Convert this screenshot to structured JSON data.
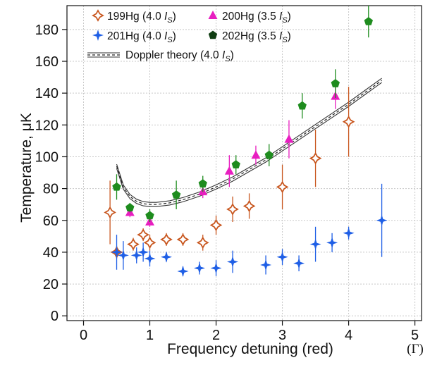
{
  "chart_data": {
    "type": "scatter",
    "xlabel": "Frequency detuning (red)",
    "x_unit": "(Γ)",
    "ylabel": "Temperature, μK",
    "xlim": [
      -0.25,
      5.1
    ],
    "ylim": [
      -3,
      195
    ],
    "x_ticks": [
      "0",
      "1",
      "2",
      "3",
      "4",
      "5"
    ],
    "y_ticks": [
      "0",
      "20",
      "40",
      "60",
      "80",
      "100",
      "120",
      "140",
      "160",
      "180"
    ],
    "grid": true,
    "legend_position": "top-left",
    "series": [
      {
        "name": "199Hg (4.0 I_S)",
        "legend_main": "199Hg (4.0 ",
        "legend_var": "I",
        "legend_sub": "S",
        "legend_close": ")",
        "marker": "open-star",
        "color": "#c8561e",
        "points": [
          {
            "x": 0.4,
            "y": 65,
            "err": 20
          },
          {
            "x": 0.5,
            "y": 40,
            "err": 4
          },
          {
            "x": 0.75,
            "y": 45,
            "err": 4
          },
          {
            "x": 0.9,
            "y": 51,
            "err": 4
          },
          {
            "x": 1.0,
            "y": 46,
            "err": 5
          },
          {
            "x": 1.25,
            "y": 48,
            "err": 4
          },
          {
            "x": 1.5,
            "y": 48,
            "err": 4
          },
          {
            "x": 1.8,
            "y": 46,
            "err": 5
          },
          {
            "x": 2.0,
            "y": 57,
            "err": 6
          },
          {
            "x": 2.25,
            "y": 67,
            "err": 8
          },
          {
            "x": 2.5,
            "y": 69,
            "err": 8
          },
          {
            "x": 3.0,
            "y": 81,
            "err": 14
          },
          {
            "x": 3.5,
            "y": 99,
            "err": 18
          },
          {
            "x": 4.0,
            "y": 122,
            "err": 22
          }
        ]
      },
      {
        "name": "200Hg (3.5 I_S)",
        "legend_main": "200Hg (3.5 ",
        "legend_var": "I",
        "legend_sub": "S",
        "legend_close": ")",
        "marker": "triangle",
        "color": "#e81ec0",
        "points": [
          {
            "x": 0.7,
            "y": 65,
            "err": 3
          },
          {
            "x": 1.0,
            "y": 59,
            "err": 3
          },
          {
            "x": 1.8,
            "y": 78,
            "err": 4
          },
          {
            "x": 2.2,
            "y": 91,
            "err": 10
          },
          {
            "x": 2.6,
            "y": 101,
            "err": 6
          },
          {
            "x": 3.1,
            "y": 111,
            "err": 12
          },
          {
            "x": 3.8,
            "y": 138,
            "err": 8
          }
        ]
      },
      {
        "name": "201Hg (4.0 I_S)",
        "legend_main": "201Hg (4.0 ",
        "legend_var": "I",
        "legend_sub": "S",
        "legend_close": ")",
        "marker": "diamond-star",
        "color": "#1f5fe6",
        "points": [
          {
            "x": 0.5,
            "y": 40,
            "err": 11
          },
          {
            "x": 0.6,
            "y": 38,
            "err": 9
          },
          {
            "x": 0.8,
            "y": 38,
            "err": 5
          },
          {
            "x": 0.9,
            "y": 40,
            "err": 6
          },
          {
            "x": 1.0,
            "y": 36,
            "err": 5
          },
          {
            "x": 1.25,
            "y": 37,
            "err": 3
          },
          {
            "x": 1.5,
            "y": 28,
            "err": 3
          },
          {
            "x": 1.75,
            "y": 30,
            "err": 4
          },
          {
            "x": 2.0,
            "y": 30,
            "err": 5
          },
          {
            "x": 2.25,
            "y": 34,
            "err": 7
          },
          {
            "x": 2.75,
            "y": 32,
            "err": 6
          },
          {
            "x": 3.0,
            "y": 37,
            "err": 5
          },
          {
            "x": 3.25,
            "y": 33,
            "err": 5
          },
          {
            "x": 3.5,
            "y": 45,
            "err": 11
          },
          {
            "x": 3.75,
            "y": 46,
            "err": 6
          },
          {
            "x": 4.0,
            "y": 52,
            "err": 4
          },
          {
            "x": 4.5,
            "y": 60,
            "err": 23
          }
        ]
      },
      {
        "name": "202Hg (3.5 I_S)",
        "legend_main": "202Hg (3.5 ",
        "legend_var": "I",
        "legend_sub": "S",
        "legend_close": ")",
        "marker": "pentagon",
        "color": "#1e8c1e",
        "legend_color": "#0f3d12",
        "points": [
          {
            "x": 0.5,
            "y": 81,
            "err": 8
          },
          {
            "x": 0.7,
            "y": 68,
            "err": 3
          },
          {
            "x": 1.0,
            "y": 63,
            "err": 4
          },
          {
            "x": 1.4,
            "y": 76,
            "err": 9
          },
          {
            "x": 1.8,
            "y": 83,
            "err": 5
          },
          {
            "x": 2.3,
            "y": 95,
            "err": 6
          },
          {
            "x": 2.8,
            "y": 101,
            "err": 7
          },
          {
            "x": 3.3,
            "y": 132,
            "err": 8
          },
          {
            "x": 3.8,
            "y": 146,
            "err": 9
          },
          {
            "x": 4.3,
            "y": 185,
            "err": 10
          }
        ]
      }
    ],
    "theory": {
      "name": "Doppler theory (4.0 I_S)",
      "legend_main": "Doppler  theory (4.0 ",
      "legend_var": "I",
      "legend_sub": "S",
      "legend_close": ")",
      "x": [
        0.5,
        0.6,
        0.7,
        0.8,
        0.9,
        1.0,
        1.1,
        1.2,
        1.3,
        1.4,
        1.5,
        1.75,
        2.0,
        2.25,
        2.5,
        2.75,
        3.0,
        3.25,
        3.5,
        3.75,
        4.0,
        4.25,
        4.5
      ],
      "y": [
        94,
        81,
        75,
        72,
        70.5,
        70,
        70,
        70.5,
        71,
        72,
        73,
        76.5,
        81,
        86,
        92,
        98,
        105,
        112,
        119,
        126,
        133,
        140.5,
        148
      ]
    }
  }
}
